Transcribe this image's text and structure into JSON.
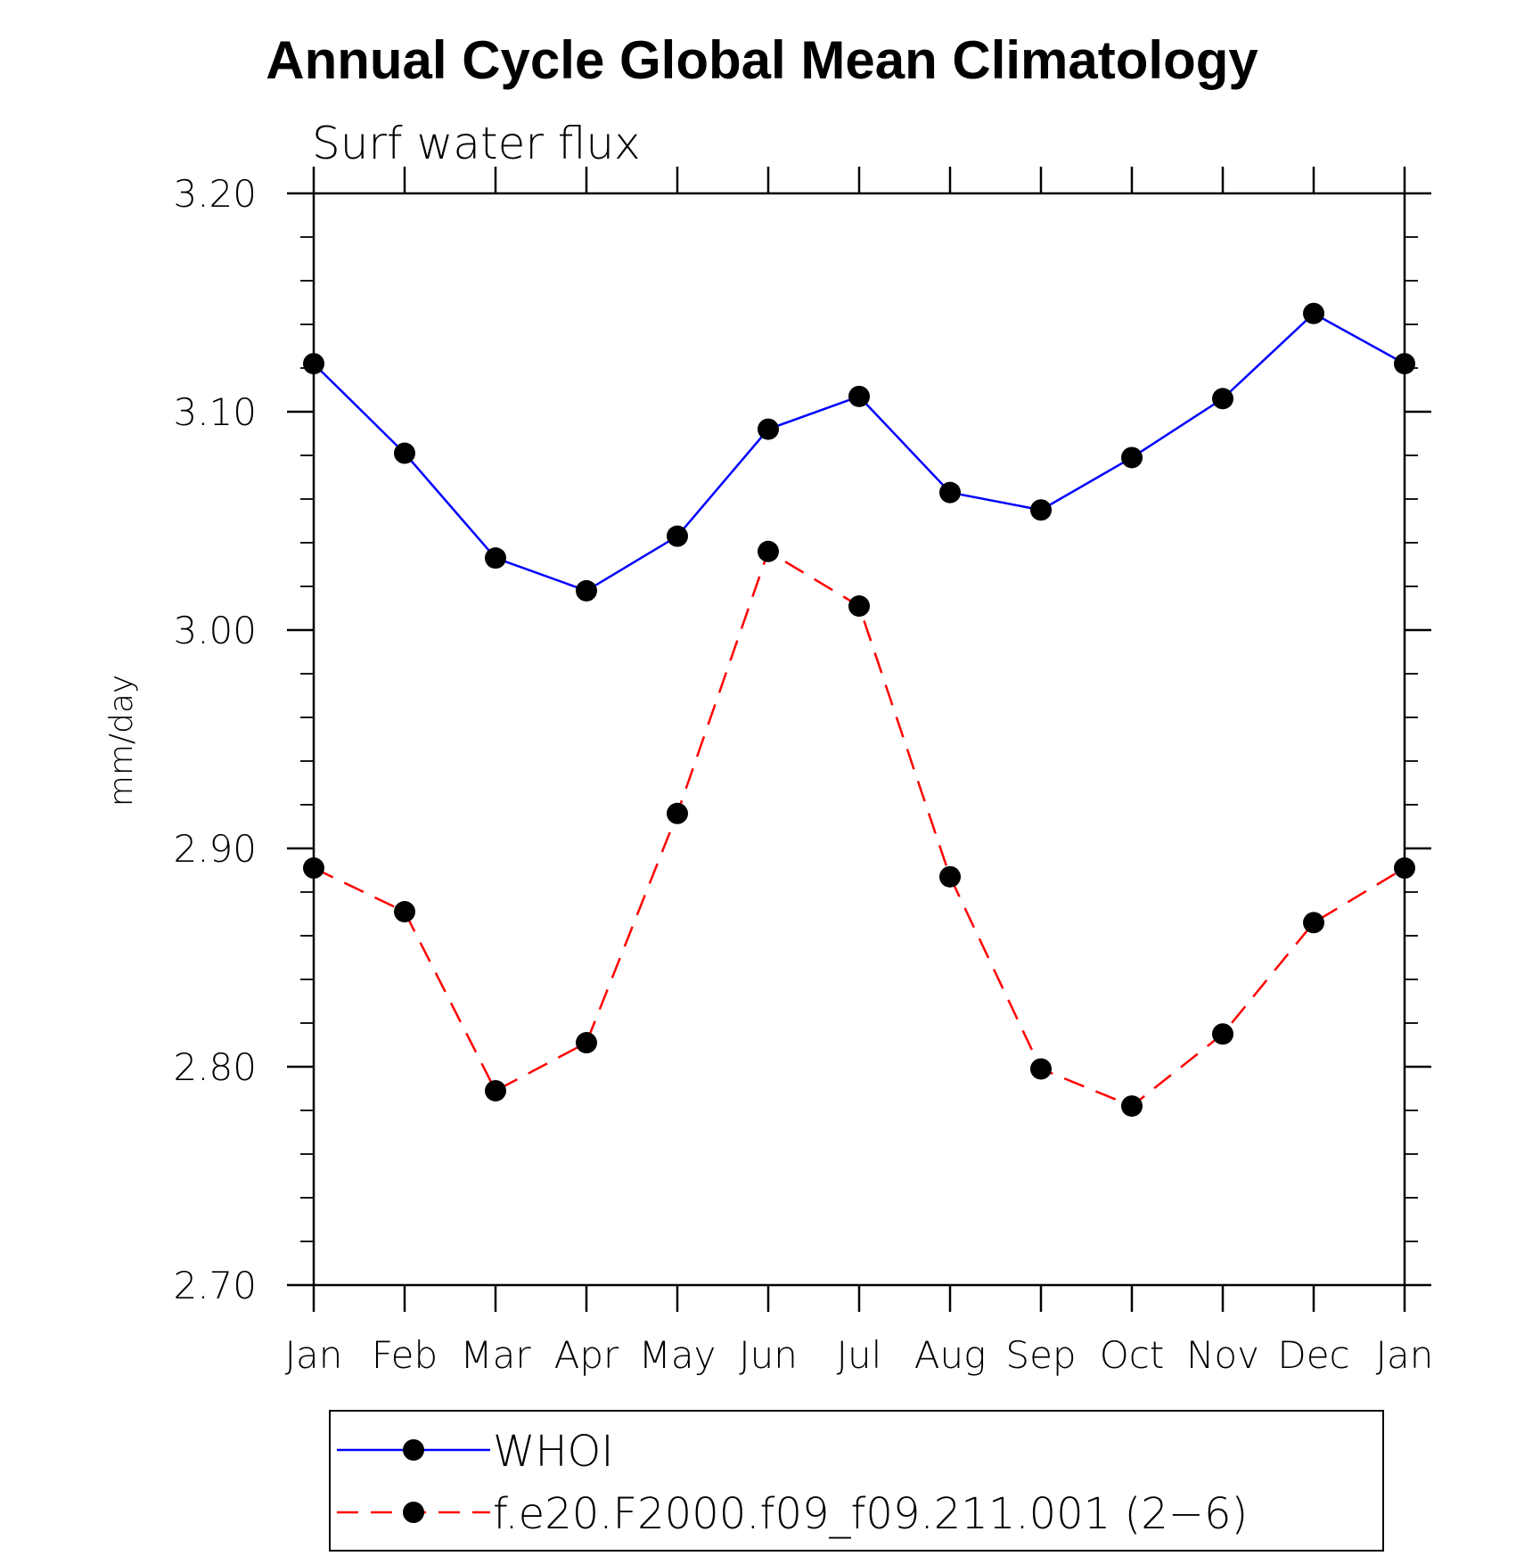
{
  "chart_data": {
    "type": "line",
    "title": "Annual Cycle Global Mean Climatology",
    "subtitle": "Surf water flux",
    "xlabel": "",
    "ylabel": "mm/day",
    "categories": [
      "Jan",
      "Feb",
      "Mar",
      "Apr",
      "May",
      "Jun",
      "Jul",
      "Aug",
      "Sep",
      "Oct",
      "Nov",
      "Dec",
      "Jan"
    ],
    "ylim": [
      2.7,
      3.2
    ],
    "yticks": [
      2.7,
      2.8,
      2.9,
      3.0,
      3.1,
      3.2
    ],
    "ytick_labels": [
      "2.70",
      "2.80",
      "2.90",
      "3.00",
      "3.10",
      "3.20"
    ],
    "grid": false,
    "legend_position": "bottom",
    "series": [
      {
        "name": "WHOI",
        "color": "#0000ff",
        "line_style": "solid",
        "marker": "filled-circle",
        "values": [
          3.122,
          3.081,
          3.033,
          3.018,
          3.043,
          3.092,
          3.107,
          3.063,
          3.055,
          3.079,
          3.106,
          3.145,
          3.122
        ]
      },
      {
        "name": "f.e20.F2000.f09_f09.211.001 (2−6)",
        "color": "#ff0000",
        "line_style": "dashed",
        "marker": "filled-circle",
        "values": [
          2.891,
          2.871,
          2.789,
          2.811,
          2.916,
          3.036,
          3.011,
          2.887,
          2.799,
          2.782,
          2.815,
          2.866,
          2.891
        ]
      }
    ]
  }
}
